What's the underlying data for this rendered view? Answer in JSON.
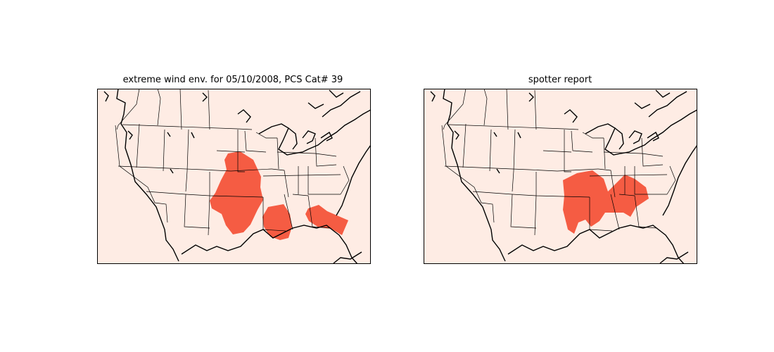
{
  "panels": [
    {
      "id": "left",
      "title": "extreme wind env. for 05/10/2008, PCS Cat# 39",
      "highlighted_regions": [
        "Kansas",
        "Oklahoma",
        "Missouri",
        "Arkansas",
        "Louisiana",
        "Mississippi",
        "Alabama",
        "Florida panhandle"
      ]
    },
    {
      "id": "right",
      "title": "spotter report",
      "highlighted_regions": [
        "Oklahoma",
        "Arkansas",
        "Louisiana",
        "Mississippi",
        "Alabama",
        "Tennessee",
        "Georgia",
        "South Carolina"
      ]
    }
  ],
  "colors": {
    "background": "#feece4",
    "highlight": "#f55c43",
    "border": "#000000"
  }
}
